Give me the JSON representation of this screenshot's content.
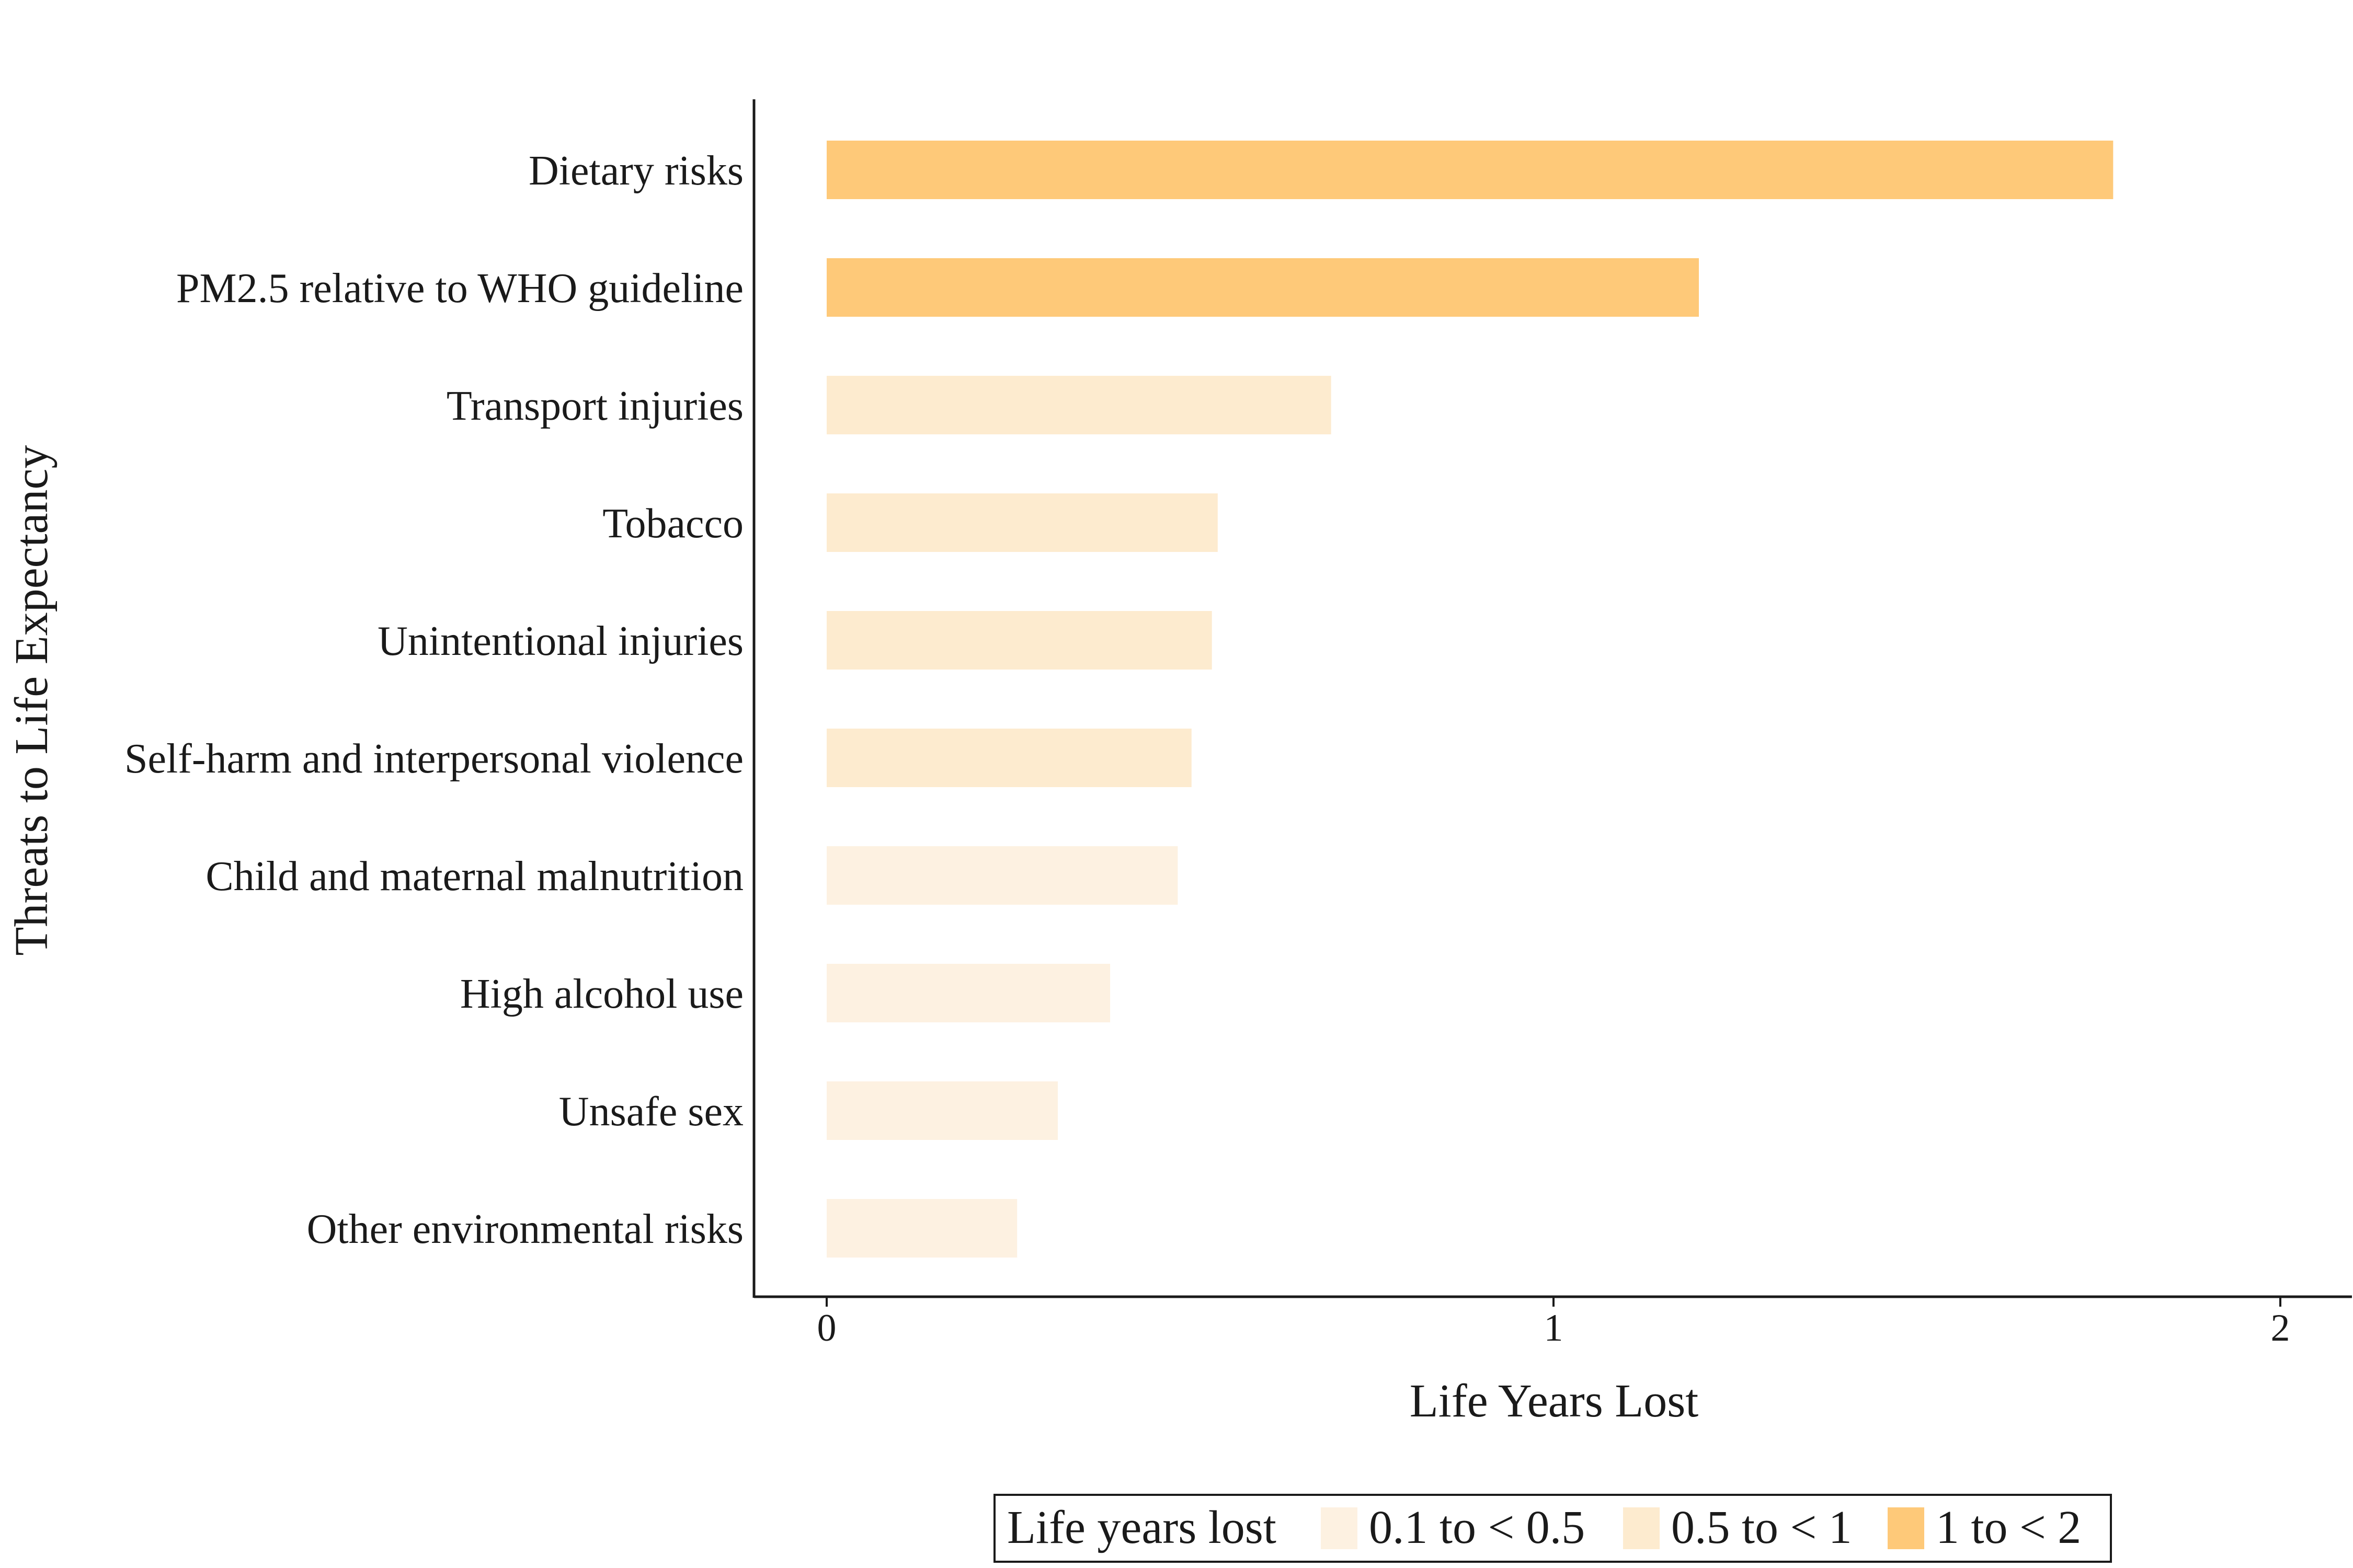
{
  "chart_data": {
    "type": "bar",
    "orientation": "horizontal",
    "categories": [
      "Dietary risks",
      "PM2.5 relative to WHO guideline",
      "Transport injuries",
      "Tobacco",
      "Unintentional injuries",
      "Self-harm and interpersonal violence",
      "Child and maternal malnutrition",
      "High alcohol use",
      "Unsafe sex",
      "Other environmental risks"
    ],
    "values": [
      1.77,
      1.2,
      0.694,
      0.538,
      0.53,
      0.502,
      0.483,
      0.39,
      0.318,
      0.262
    ],
    "value_classes": [
      "1 to < 2",
      "1 to < 2",
      "0.5 to < 1",
      "0.5 to < 1",
      "0.5 to < 1",
      "0.5 to < 1",
      "0.1 to < 0.5",
      "0.1 to < 0.5",
      "0.1 to < 0.5",
      "0.1 to < 0.5"
    ],
    "xlabel": "Life Years Lost",
    "ylabel": "Threats to Life Expectancy",
    "xlim": [
      -0.1,
      2.1
    ],
    "xticks": [
      0,
      1,
      2
    ],
    "xtick_labels": [
      "0",
      "1",
      "2"
    ],
    "grid": false,
    "legend": {
      "title": "Life years lost",
      "position": "bottom",
      "entries": [
        {
          "label": "0.1 to < 0.5",
          "color": "#fdf1e1"
        },
        {
          "label": "0.5 to < 1",
          "color": "#fdebcf"
        },
        {
          "label": "1 to < 2",
          "color": "#fec979"
        }
      ]
    }
  }
}
